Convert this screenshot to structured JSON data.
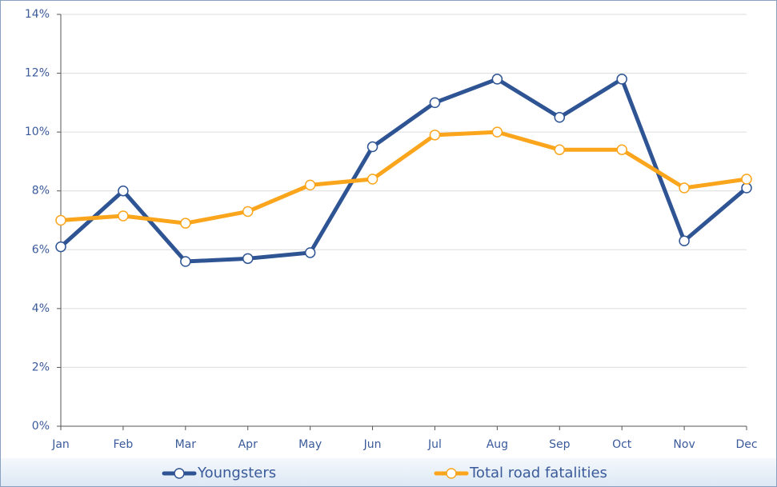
{
  "chart_data": {
    "type": "line",
    "categories": [
      "Jan",
      "Feb",
      "Mar",
      "Apr",
      "May",
      "Jun",
      "Jul",
      "Aug",
      "Sep",
      "Oct",
      "Nov",
      "Dec"
    ],
    "series": [
      {
        "name": "Youngsters",
        "color": "#2e5494",
        "values": [
          6.1,
          8.0,
          5.6,
          5.7,
          5.9,
          9.5,
          11.0,
          11.8,
          10.5,
          11.8,
          6.3,
          8.1
        ]
      },
      {
        "name": "Total road fatalities",
        "color": "#fba51c",
        "values": [
          7.0,
          7.15,
          6.9,
          7.3,
          8.2,
          8.4,
          9.9,
          10.0,
          9.4,
          9.4,
          8.1,
          8.4
        ]
      }
    ],
    "ylim": [
      0,
      14
    ],
    "yticks": [
      {
        "value": 0,
        "label": "0%"
      },
      {
        "value": 2,
        "label": "2%"
      },
      {
        "value": 4,
        "label": "4%"
      },
      {
        "value": 6,
        "label": "6%"
      },
      {
        "value": 8,
        "label": "8%"
      },
      {
        "value": 10,
        "label": "10%"
      },
      {
        "value": 12,
        "label": "12%"
      },
      {
        "value": 14,
        "label": "14%"
      }
    ],
    "grid": true,
    "legend": "bottom"
  }
}
